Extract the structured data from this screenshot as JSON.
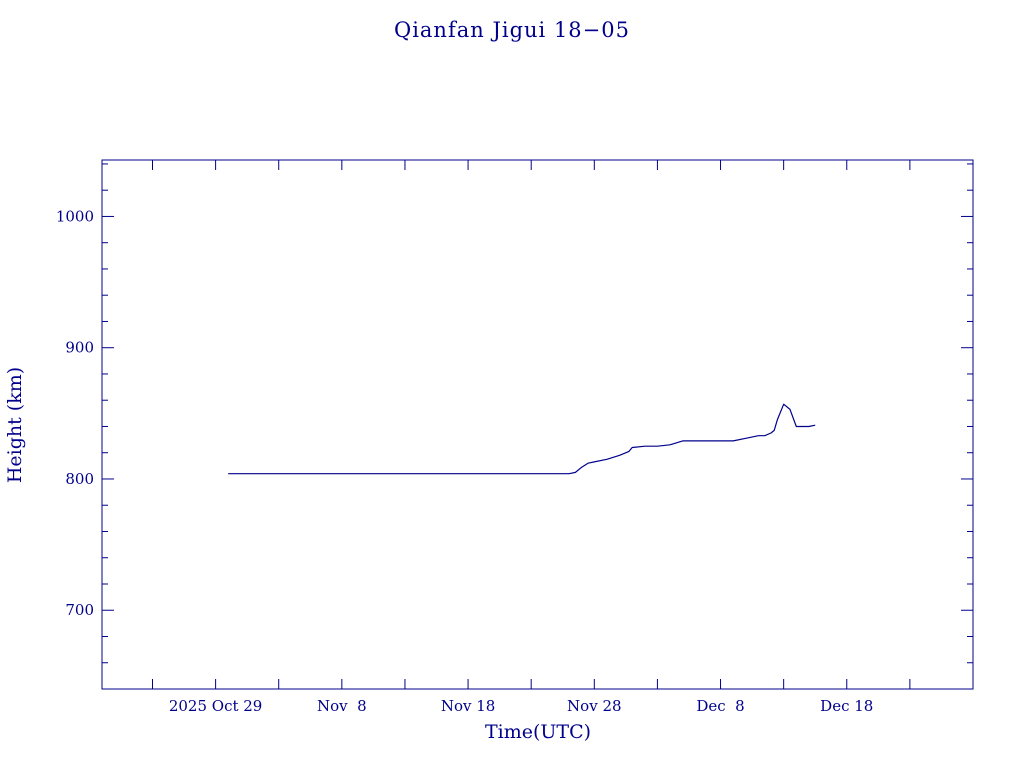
{
  "colors": {
    "ink": "#00008b",
    "background": "#ffffff"
  },
  "chart_data": {
    "type": "line",
    "title": "Qianfan Jigui 18−05",
    "xlabel": "Time(UTC)",
    "ylabel": "Height (km)",
    "x_type": "date",
    "xlim": [
      "2025-10-20",
      "2025-12-28"
    ],
    "ylim": [
      640,
      1043
    ],
    "x_major_ticks": [
      {
        "date": "2025-10-24",
        "label": ""
      },
      {
        "date": "2025-10-29",
        "label": "2025 Oct 29"
      },
      {
        "date": "2025-11-03",
        "label": ""
      },
      {
        "date": "2025-11-08",
        "label": "Nov  8"
      },
      {
        "date": "2025-11-13",
        "label": ""
      },
      {
        "date": "2025-11-18",
        "label": "Nov 18"
      },
      {
        "date": "2025-11-23",
        "label": ""
      },
      {
        "date": "2025-11-28",
        "label": "Nov 28"
      },
      {
        "date": "2025-12-03",
        "label": ""
      },
      {
        "date": "2025-12-08",
        "label": "Dec  8"
      },
      {
        "date": "2025-12-13",
        "label": ""
      },
      {
        "date": "2025-12-18",
        "label": "Dec 18"
      },
      {
        "date": "2025-12-23",
        "label": ""
      }
    ],
    "y_major_ticks": [
      {
        "value": 700,
        "label": "700"
      },
      {
        "value": 800,
        "label": "800"
      },
      {
        "value": 900,
        "label": "900"
      },
      {
        "value": 1000,
        "label": "1000"
      }
    ],
    "y_minor_step": 20,
    "grid": false,
    "legend": "none",
    "series": [
      {
        "x": [
          "2025-10-30",
          "2025-11-05",
          "2025-11-12",
          "2025-11-19",
          "2025-11-25",
          "2025-11-26",
          "2025-11-26 12:00",
          "2025-11-27",
          "2025-11-27 12:00",
          "2025-11-28",
          "2025-11-29",
          "2025-11-30",
          "2025-11-30 18:00",
          "2025-12-01",
          "2025-12-02",
          "2025-12-02 12:00",
          "2025-12-03",
          "2025-12-04",
          "2025-12-05",
          "2025-12-06",
          "2025-12-07",
          "2025-12-08",
          "2025-12-08 12:00",
          "2025-12-09",
          "2025-12-10",
          "2025-12-11",
          "2025-12-11 12:00",
          "2025-12-12",
          "2025-12-12 06:00",
          "2025-12-12 12:00",
          "2025-12-13",
          "2025-12-13 12:00",
          "2025-12-14",
          "2025-12-15",
          "2025-12-15 12:00"
        ],
        "y": [
          804,
          804,
          804,
          804,
          804,
          804,
          805,
          809,
          812,
          813,
          815,
          818,
          821,
          824,
          825,
          825,
          825,
          826,
          829,
          829,
          829,
          829,
          829,
          829,
          831,
          833,
          833,
          835,
          837,
          845,
          857,
          853,
          840,
          840,
          841
        ]
      }
    ]
  }
}
